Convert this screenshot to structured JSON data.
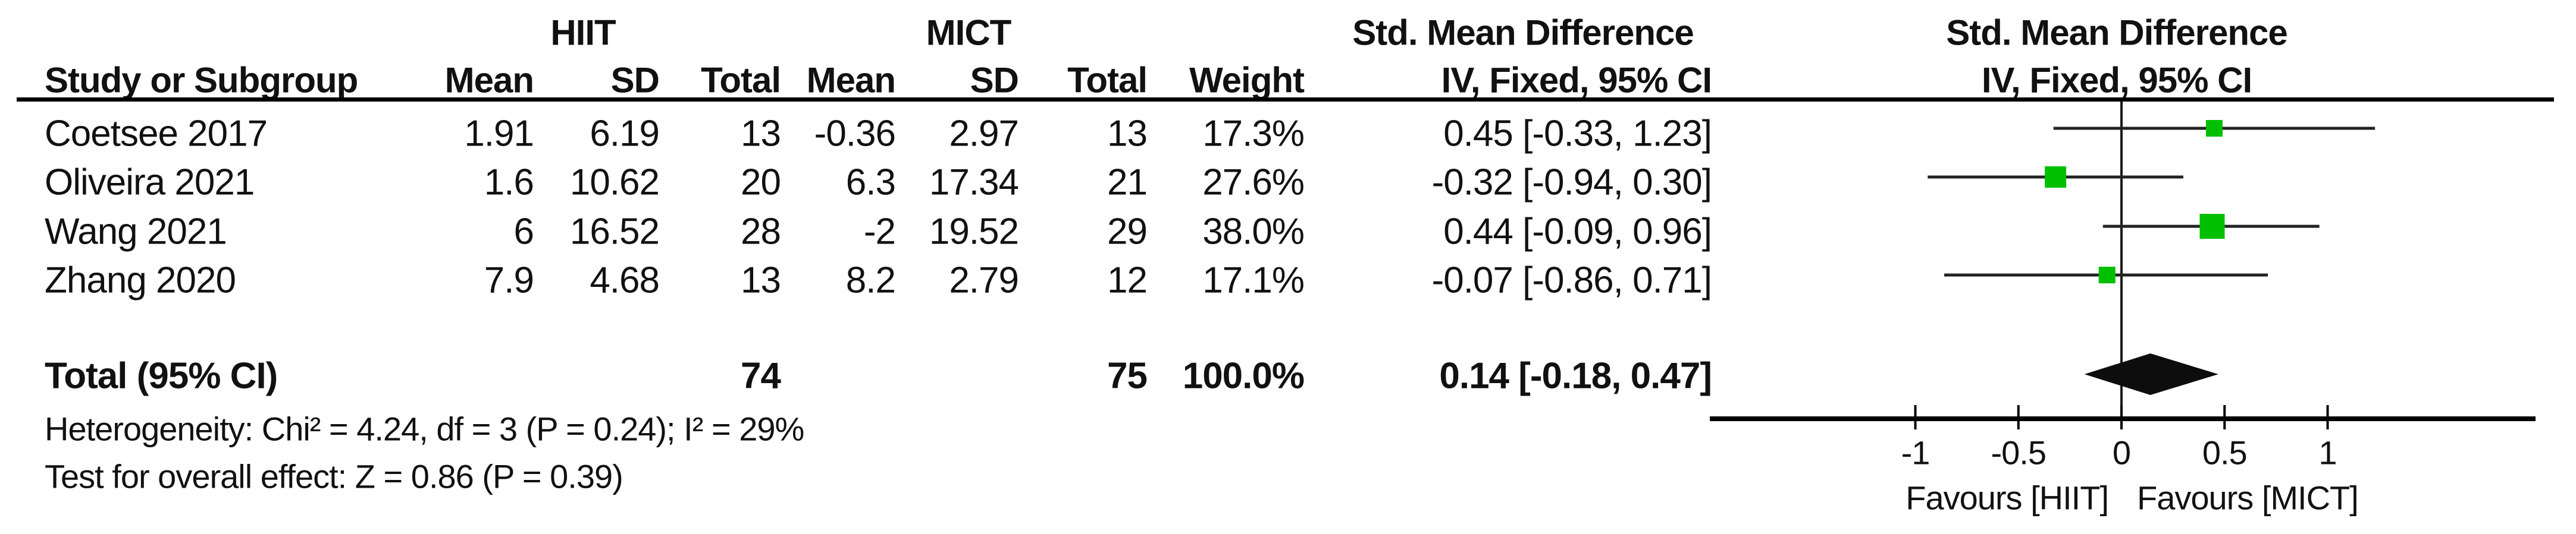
{
  "table": {
    "group1_label": "HIIT",
    "group2_label": "MICT",
    "effect_label_table": "Std. Mean Difference",
    "effect_label_plot": "Std. Mean Difference",
    "col_headers": {
      "study": "Study or Subgroup",
      "mean1": "Mean",
      "sd1": "SD",
      "total1": "Total",
      "mean2": "Mean",
      "sd2": "SD",
      "total2": "Total",
      "weight": "Weight",
      "ci_table": "IV, Fixed, 95% CI",
      "ci_plot": "IV, Fixed, 95% CI"
    },
    "rows": [
      {
        "study": "Coetsee 2017",
        "mean1": "1.91",
        "sd1": "6.19",
        "total1": "13",
        "mean2": "-0.36",
        "sd2": "2.97",
        "total2": "13",
        "weight": "17.3%",
        "ci": "0.45 [-0.33, 1.23]"
      },
      {
        "study": "Oliveira 2021",
        "mean1": "1.6",
        "sd1": "10.62",
        "total1": "20",
        "mean2": "6.3",
        "sd2": "17.34",
        "total2": "21",
        "weight": "27.6%",
        "ci": "-0.32 [-0.94, 0.30]"
      },
      {
        "study": "Wang 2021",
        "mean1": "6",
        "sd1": "16.52",
        "total1": "28",
        "mean2": "-2",
        "sd2": "19.52",
        "total2": "29",
        "weight": "38.0%",
        "ci": "0.44 [-0.09, 0.96]"
      },
      {
        "study": "Zhang 2020",
        "mean1": "7.9",
        "sd1": "4.68",
        "total1": "13",
        "mean2": "8.2",
        "sd2": "2.79",
        "total2": "12",
        "weight": "17.1%",
        "ci": "-0.07 [-0.86, 0.71]"
      }
    ],
    "total_row": {
      "label": "Total (95% CI)",
      "total1": "74",
      "total2": "75",
      "weight": "100.0%",
      "ci": "0.14 [-0.18, 0.47]"
    },
    "footnote_heterogeneity": "Heterogeneity: Chi² = 4.24, df = 3 (P = 0.24); I² = 29%",
    "footnote_overall_effect": "Test for overall effect: Z = 0.86 (P = 0.39)"
  },
  "chart_data": {
    "type": "forest",
    "effect_measure": "Std. Mean Difference (IV, Fixed, 95% CI)",
    "studies": [
      {
        "name": "Coetsee 2017",
        "est": 0.45,
        "lo": -0.33,
        "hi": 1.23,
        "weight_pct": 17.3
      },
      {
        "name": "Oliveira 2021",
        "est": -0.32,
        "lo": -0.94,
        "hi": 0.3,
        "weight_pct": 27.6
      },
      {
        "name": "Wang 2021",
        "est": 0.44,
        "lo": -0.09,
        "hi": 0.96,
        "weight_pct": 38.0
      },
      {
        "name": "Zhang 2020",
        "est": -0.07,
        "lo": -0.86,
        "hi": 0.71,
        "weight_pct": 17.1
      }
    ],
    "total": {
      "est": 0.14,
      "lo": -0.18,
      "hi": 0.47
    },
    "axis": {
      "xlim": [
        -2,
        2
      ],
      "ticks": [
        -1,
        -0.5,
        0,
        0.5,
        1
      ],
      "tick_labels": [
        "-1",
        "-0.5",
        "0",
        "0.5",
        "1"
      ]
    },
    "favours_left": "Favours [HIIT]",
    "favours_right": "Favours [MICT]",
    "marker_color": "#00bf00",
    "line_color": "#1a1a1a",
    "diamond_color": "#0d0d0d"
  }
}
